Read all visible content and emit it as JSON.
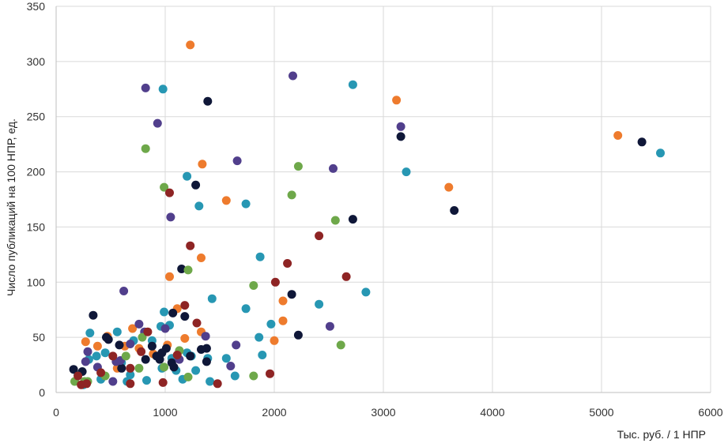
{
  "chart_data": {
    "type": "scatter",
    "title": "",
    "xlabel": "Тыс. руб. / 1 НПР",
    "ylabel": "Число публикаций на 100 НПР, ед.",
    "xlim": [
      0,
      6000
    ],
    "ylim": [
      0,
      350
    ],
    "x_ticks": [
      0,
      1000,
      2000,
      3000,
      4000,
      5000,
      6000
    ],
    "y_ticks": [
      0,
      50,
      100,
      150,
      200,
      250,
      300,
      350
    ],
    "grid": true,
    "legend": "none",
    "colors": {
      "navy": "#0f1738",
      "teal": "#2797b3",
      "orange": "#ee7b2d",
      "purple": "#513f8c",
      "green": "#6ea84a",
      "red": "#8e2424"
    },
    "series": [
      {
        "color": "#ee7b2d",
        "points": [
          [
            1230,
            315
          ],
          [
            3120,
            265
          ],
          [
            5150,
            233
          ],
          [
            1340,
            207
          ],
          [
            1560,
            174
          ],
          [
            3600,
            186
          ],
          [
            1040,
            105
          ],
          [
            1330,
            122
          ],
          [
            2080,
            83
          ],
          [
            2080,
            65
          ],
          [
            2000,
            47
          ],
          [
            270,
            46
          ],
          [
            380,
            42
          ],
          [
            470,
            51
          ],
          [
            630,
            42
          ],
          [
            700,
            58
          ],
          [
            760,
            40
          ],
          [
            1020,
            43
          ],
          [
            1110,
            76
          ],
          [
            1180,
            49
          ],
          [
            1330,
            55
          ],
          [
            560,
            22
          ],
          [
            890,
            35
          ]
        ]
      },
      {
        "color": "#2797b3",
        "points": [
          [
            980,
            275
          ],
          [
            2720,
            279
          ],
          [
            5540,
            217
          ],
          [
            3210,
            200
          ],
          [
            1200,
            196
          ],
          [
            1740,
            171
          ],
          [
            1310,
            169
          ],
          [
            1870,
            123
          ],
          [
            1430,
            85
          ],
          [
            1740,
            76
          ],
          [
            1970,
            62
          ],
          [
            1890,
            34
          ],
          [
            1860,
            50
          ],
          [
            2840,
            91
          ],
          [
            2410,
            80
          ],
          [
            990,
            73
          ],
          [
            1040,
            61
          ],
          [
            960,
            60
          ],
          [
            880,
            47
          ],
          [
            1200,
            36
          ],
          [
            560,
            55
          ],
          [
            310,
            54
          ],
          [
            300,
            30
          ],
          [
            370,
            33
          ],
          [
            450,
            36
          ],
          [
            600,
            27
          ],
          [
            680,
            16
          ],
          [
            710,
            47
          ],
          [
            830,
            11
          ],
          [
            970,
            22
          ],
          [
            1060,
            31
          ],
          [
            1100,
            20
          ],
          [
            1240,
            33
          ],
          [
            1390,
            31
          ],
          [
            1560,
            31
          ],
          [
            1640,
            15
          ],
          [
            1410,
            10
          ],
          [
            1280,
            20
          ],
          [
            1160,
            12
          ],
          [
            200,
            16
          ],
          [
            250,
            7
          ],
          [
            650,
            10
          ],
          [
            410,
            12
          ]
        ]
      },
      {
        "color": "#0f1738",
        "points": [
          [
            1390,
            264
          ],
          [
            3160,
            232
          ],
          [
            5370,
            227
          ],
          [
            1280,
            188
          ],
          [
            3650,
            165
          ],
          [
            2720,
            157
          ],
          [
            1150,
            112
          ],
          [
            2160,
            89
          ],
          [
            2220,
            52
          ],
          [
            1180,
            69
          ],
          [
            1070,
            72
          ],
          [
            340,
            70
          ],
          [
            580,
            43
          ],
          [
            880,
            42
          ],
          [
            1010,
            40
          ],
          [
            950,
            30
          ],
          [
            1230,
            33
          ],
          [
            1380,
            28
          ],
          [
            1380,
            40
          ],
          [
            1330,
            39
          ],
          [
            160,
            21
          ],
          [
            240,
            19
          ],
          [
            480,
            48
          ],
          [
            460,
            50
          ],
          [
            600,
            22
          ],
          [
            820,
            30
          ],
          [
            1060,
            27
          ],
          [
            1080,
            23
          ],
          [
            920,
            33
          ],
          [
            970,
            36
          ]
        ]
      },
      {
        "color": "#513f8c",
        "points": [
          [
            820,
            276
          ],
          [
            2170,
            287
          ],
          [
            930,
            244
          ],
          [
            3160,
            241
          ],
          [
            1660,
            210
          ],
          [
            2540,
            203
          ],
          [
            1050,
            159
          ],
          [
            620,
            92
          ],
          [
            1650,
            43
          ],
          [
            1600,
            24
          ],
          [
            2510,
            60
          ],
          [
            760,
            62
          ],
          [
            810,
            55
          ],
          [
            680,
            44
          ],
          [
            590,
            29
          ],
          [
            380,
            23
          ],
          [
            520,
            10
          ],
          [
            290,
            37
          ],
          [
            270,
            28
          ],
          [
            1000,
            58
          ],
          [
            1130,
            30
          ],
          [
            1370,
            51
          ],
          [
            550,
            28
          ]
        ]
      },
      {
        "color": "#6ea84a",
        "points": [
          [
            820,
            221
          ],
          [
            990,
            186
          ],
          [
            2220,
            205
          ],
          [
            2160,
            179
          ],
          [
            2560,
            156
          ],
          [
            1210,
            111
          ],
          [
            1810,
            97
          ],
          [
            2610,
            43
          ],
          [
            1810,
            15
          ],
          [
            170,
            10
          ],
          [
            260,
            10
          ],
          [
            450,
            15
          ],
          [
            760,
            22
          ],
          [
            790,
            50
          ],
          [
            990,
            23
          ],
          [
            1210,
            14
          ],
          [
            1130,
            38
          ],
          [
            640,
            33
          ],
          [
            290,
            10
          ]
        ]
      },
      {
        "color": "#8e2424",
        "points": [
          [
            1040,
            181
          ],
          [
            1230,
            133
          ],
          [
            2120,
            117
          ],
          [
            2410,
            142
          ],
          [
            2010,
            100
          ],
          [
            2660,
            105
          ],
          [
            1180,
            79
          ],
          [
            1290,
            63
          ],
          [
            1960,
            17
          ],
          [
            1480,
            8
          ],
          [
            980,
            9
          ],
          [
            680,
            8
          ],
          [
            410,
            18
          ],
          [
            230,
            7
          ],
          [
            520,
            33
          ],
          [
            680,
            22
          ],
          [
            780,
            37
          ],
          [
            840,
            55
          ],
          [
            1110,
            34
          ],
          [
            280,
            8
          ],
          [
            200,
            15
          ]
        ]
      }
    ]
  }
}
